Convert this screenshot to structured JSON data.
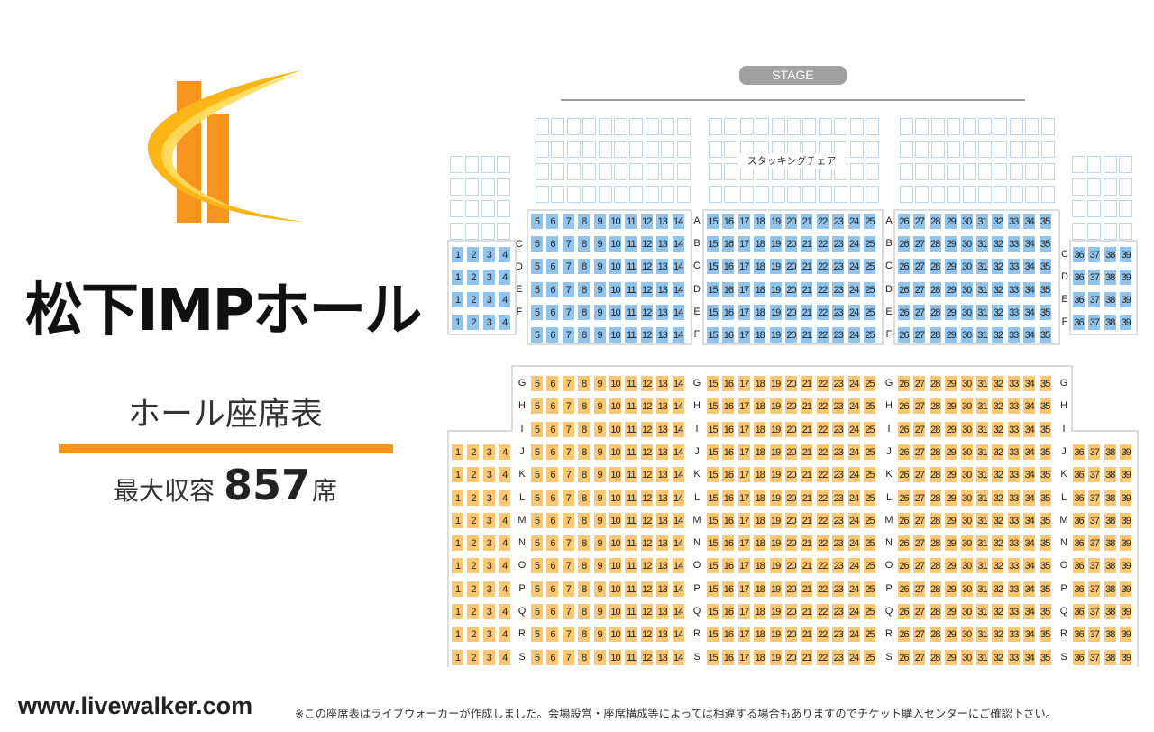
{
  "hall": {
    "name": "松下IMPホール",
    "chart_subtitle": "ホール座席表",
    "capacity_label": "最大収容",
    "capacity_number": "857",
    "capacity_unit": "席"
  },
  "stage_label": "STAGE",
  "stacking_chair_label": "スタッキングチェア",
  "footer": {
    "site": "www.livewalker.com",
    "disclaimer": "※この座席表はライブウォーカーが作成しました。会場設営・座席構成等によっては相違する場合もありますのでチケット購入センターにご確認下さい。"
  },
  "colors": {
    "accent_orange": "#f7941d",
    "front_seat_blue": "#90c4ec",
    "rear_seat_orange": "#fbc770",
    "stacking_outline": "#bcd4ec"
  },
  "icons": [
    "hall-logo-icon"
  ],
  "seating": {
    "front_rows": [
      "A",
      "B",
      "C",
      "D",
      "E",
      "F"
    ],
    "rear_rows": [
      "G",
      "H",
      "I",
      "J",
      "K",
      "L",
      "M",
      "N",
      "O",
      "P",
      "Q",
      "R",
      "S"
    ],
    "left_side_seats": [
      1,
      2,
      3,
      4
    ],
    "center_left_seats": [
      5,
      6,
      7,
      8,
      9,
      10,
      11,
      12,
      13,
      14
    ],
    "center_seats": [
      15,
      16,
      17,
      18,
      19,
      20,
      21,
      22,
      23,
      24,
      25
    ],
    "center_right_seats": [
      26,
      27,
      28,
      29,
      30,
      31,
      32,
      33,
      34,
      35
    ],
    "right_side_seats": [
      36,
      37,
      38,
      39
    ],
    "front_side_rows": [
      "C",
      "D",
      "E",
      "F"
    ],
    "rear_side_rows": [
      "J",
      "K",
      "L",
      "M",
      "N",
      "O",
      "P",
      "Q",
      "R",
      "S"
    ],
    "stacking_chair_rows": 4
  }
}
